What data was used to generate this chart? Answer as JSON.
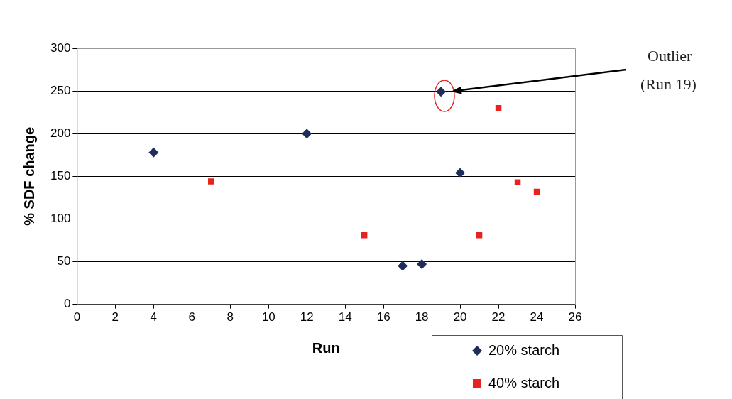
{
  "chart_data": {
    "type": "scatter",
    "xlabel": "Run",
    "ylabel": "% SDF change",
    "xlim": [
      0,
      26
    ],
    "xticks": [
      0,
      2,
      4,
      6,
      8,
      10,
      12,
      14,
      16,
      18,
      20,
      22,
      24,
      26
    ],
    "ylim": [
      0,
      300
    ],
    "yticks": [
      0,
      50,
      100,
      150,
      200,
      250,
      300
    ],
    "grid": "y",
    "legend": "bottom right",
    "series": [
      {
        "name": "20% starch",
        "color": "#1f2d5c",
        "marker": "diamond",
        "x": [
          4,
          12,
          17,
          18,
          19,
          20
        ],
        "values": [
          178,
          200,
          45,
          47,
          249,
          154
        ]
      },
      {
        "name": "40% starch",
        "color": "#e8231e",
        "marker": "square",
        "x": [
          7,
          15,
          21,
          22,
          23,
          24
        ],
        "values": [
          144,
          81,
          81,
          230,
          143,
          132
        ]
      }
    ],
    "annotations": [
      "Outlier\n(Run 19)"
    ]
  }
}
